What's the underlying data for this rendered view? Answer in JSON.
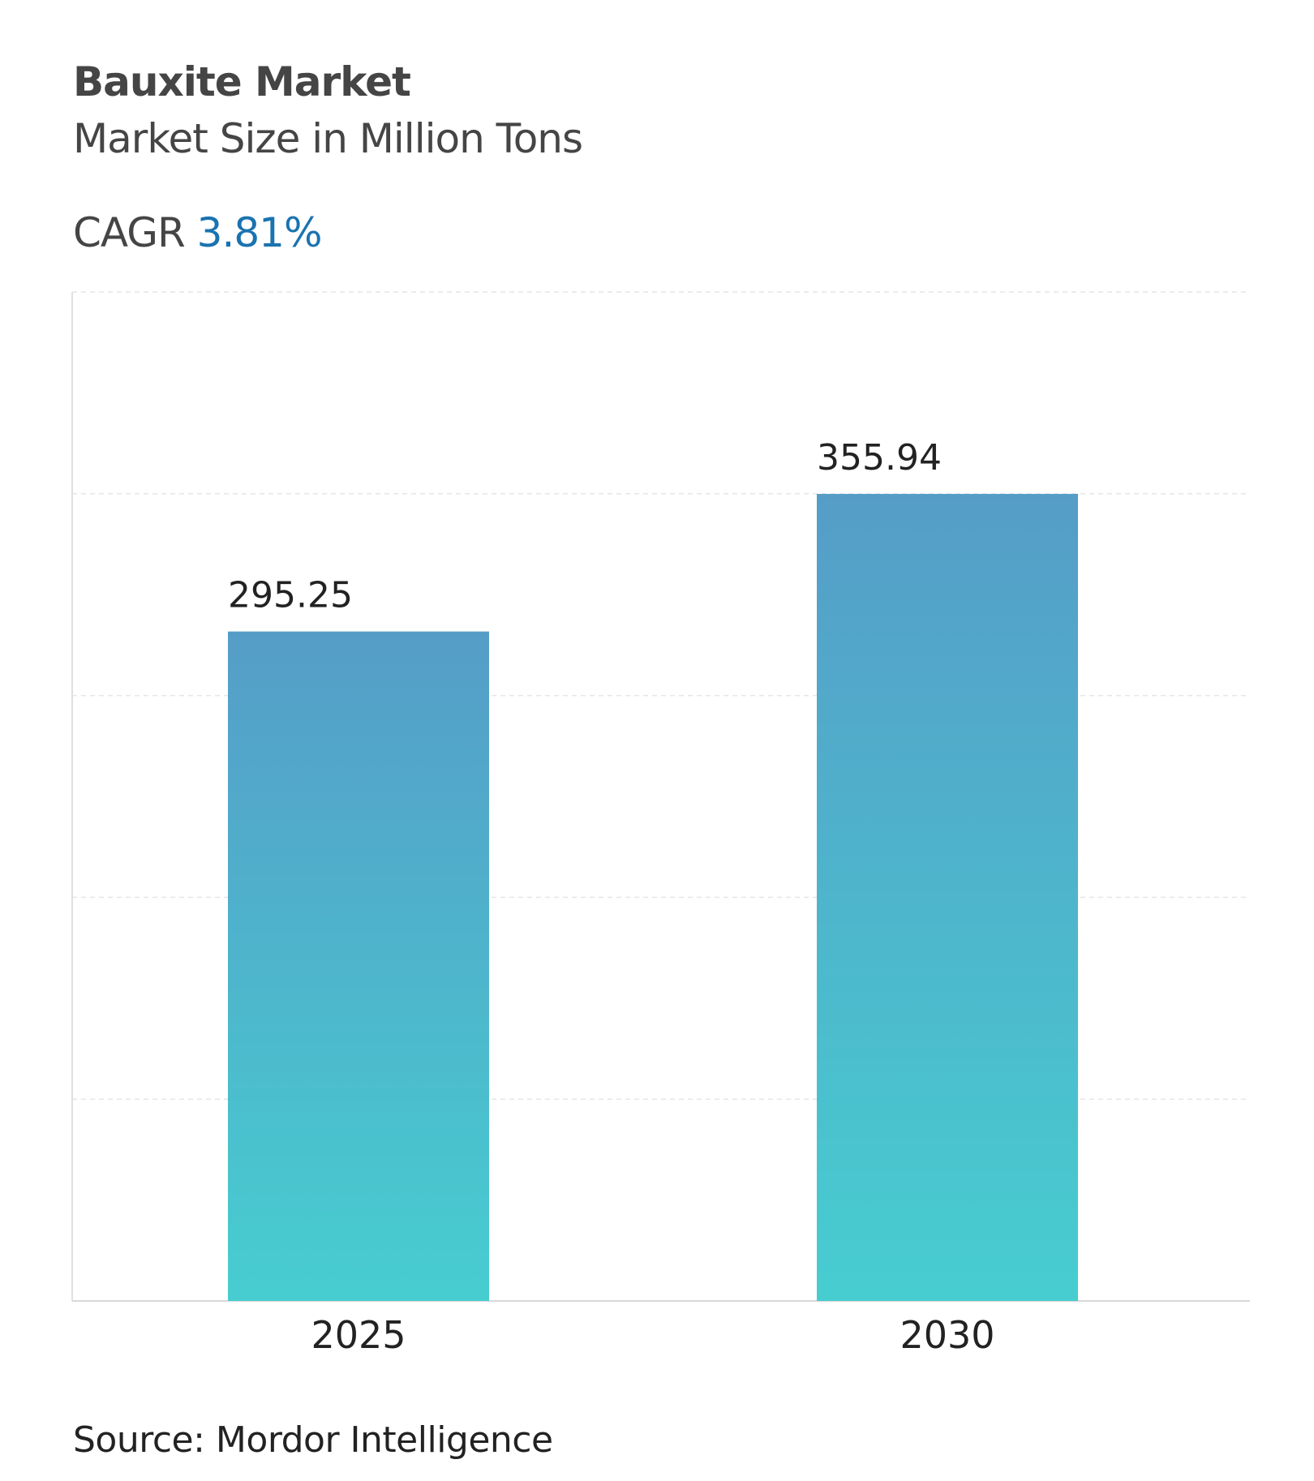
{
  "header": {
    "title": "Bauxite Market",
    "subtitle": "Market Size in Million Tons",
    "cagr_label": "CAGR",
    "cagr_value": "3.81%"
  },
  "footer": {
    "source": "Source: Mordor Intelligence"
  },
  "colors": {
    "bar_top": "#559dc8",
    "bar_bottom": "#47cdd0",
    "cagr": "#1a73b0"
  },
  "chart_data": {
    "type": "bar",
    "title": "Bauxite Market",
    "subtitle": "Market Size in Million Tons",
    "categories": [
      "2025",
      "2030"
    ],
    "values": [
      295.25,
      355.94
    ],
    "data_labels": [
      "295.25",
      "355.94"
    ],
    "xlabel": "",
    "ylabel": "",
    "ylim": [
      0,
      445
    ],
    "grid": true,
    "gridlines": 5
  }
}
